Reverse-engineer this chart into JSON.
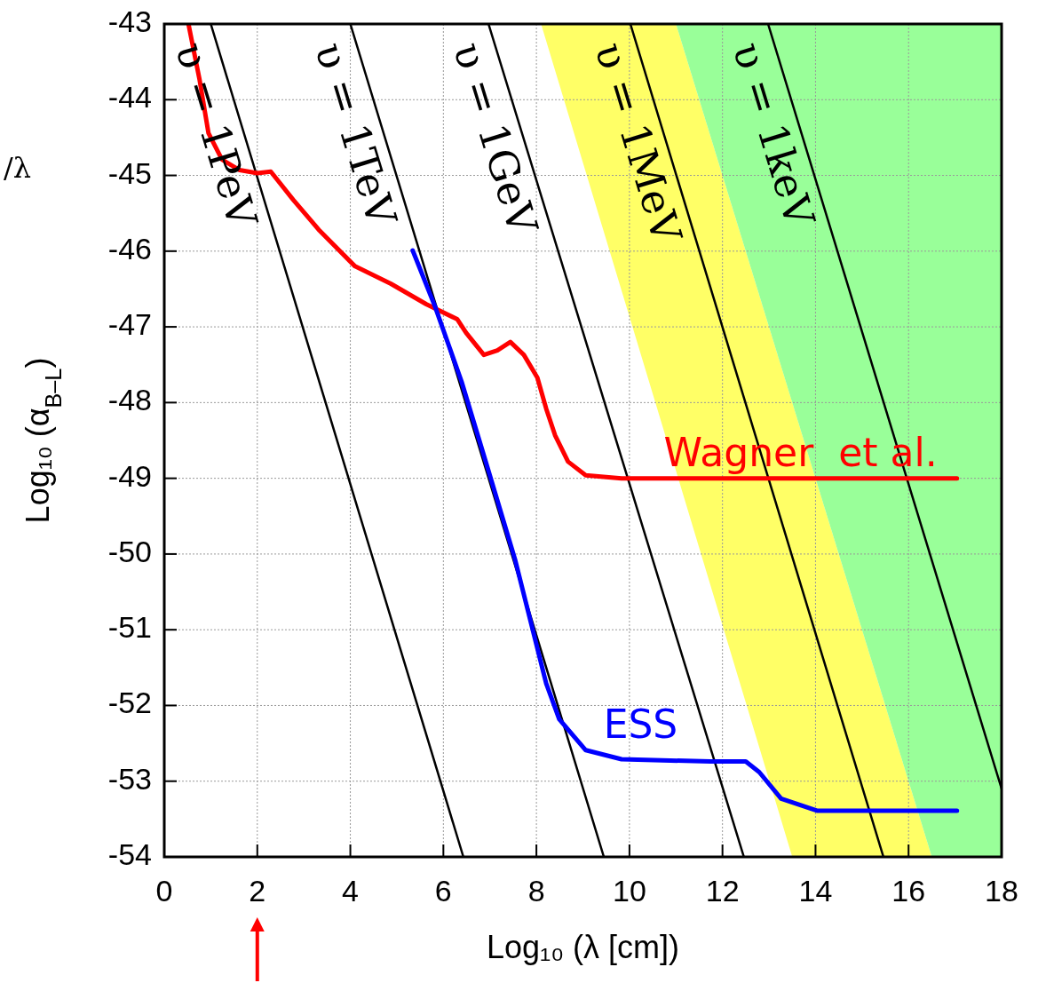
{
  "chart_data": {
    "type": "line",
    "xlabel": "Log₁₀ (λ [cm])",
    "ylabel": "Log₁₀ (α$_{B–L}$)",
    "annotations": [
      "/λ"
    ],
    "xlim": [
      0,
      18
    ],
    "xticks": [
      0,
      2,
      4,
      6,
      8,
      10,
      12,
      14,
      16,
      18
    ],
    "ylim": [
      -54,
      -43
    ],
    "yticks": [
      -43,
      -44,
      -45,
      -46,
      -47,
      -48,
      -49,
      -50,
      -51,
      -52,
      -53,
      -54
    ],
    "grid": true,
    "series": [
      {
        "color": "#ffff66",
        "x": [
          8.1,
          11,
          13.5,
          16.5
        ],
        "values": [
          null,
          null,
          null,
          null
        ],
        "lower": [
          -43,
          -48.9,
          -54,
          -54
        ],
        "upper": [
          -43,
          -43,
          -48,
          -54
        ]
      },
      {
        "color": "#99ff99",
        "x": [
          11,
          16.5,
          18
        ],
        "values": [
          null,
          null,
          null
        ],
        "lower": [
          -43,
          -54,
          -54
        ],
        "upper": [
          -43,
          -43,
          -43
        ]
      },
      {
        "name": "υ = 1PeV",
        "color": "#000000",
        "x": [
          1.0,
          6.43
        ],
        "values": [
          -43,
          -54
        ]
      },
      {
        "name": "υ = 1TeV",
        "color": "#000000",
        "x": [
          4.0,
          9.45
        ],
        "values": [
          -43,
          -54
        ]
      },
      {
        "name": "υ = 1GeV",
        "color": "#000000",
        "x": [
          6.97,
          12.46
        ],
        "values": [
          -43,
          -54
        ]
      },
      {
        "name": "υ = 1MeV",
        "color": "#000000",
        "x": [
          10.02,
          15.46
        ],
        "values": [
          -43,
          -54
        ]
      },
      {
        "name": "υ = 1keV",
        "color": "#000000",
        "x": [
          12.98,
          18
        ],
        "values": [
          -43,
          -53.1
        ]
      },
      {
        "name": "Wagner  et al.",
        "color": "#ff0000",
        "x": [
          0.52,
          0.76,
          0.95,
          1.24,
          1.62,
          2.0,
          2.29,
          2.77,
          3.34,
          4.1,
          4.87,
          5.63,
          6.3,
          6.49,
          6.87,
          7.16,
          7.44,
          7.73,
          8.02,
          8.21,
          8.4,
          8.68,
          9.06,
          9.83,
          17.04
        ],
        "values": [
          -43,
          -43.74,
          -44.44,
          -44.79,
          -44.93,
          -44.97,
          -44.95,
          -45.32,
          -45.73,
          -46.2,
          -46.43,
          -46.7,
          -46.9,
          -47.08,
          -47.37,
          -47.31,
          -47.2,
          -47.37,
          -47.67,
          -48.08,
          -48.43,
          -48.78,
          -48.96,
          -49.0,
          -49.0
        ]
      },
      {
        "name": "ESS",
        "color": "#0000ff",
        "x": [
          5.34,
          5.82,
          6.39,
          6.97,
          7.54,
          7.92,
          8.21,
          8.49,
          9.06,
          9.83,
          11.74,
          12.5,
          12.79,
          13.26,
          14.03,
          17.04
        ],
        "values": [
          -45.99,
          -46.73,
          -47.72,
          -48.9,
          -50.07,
          -51.0,
          -51.71,
          -52.18,
          -52.59,
          -52.71,
          -52.74,
          -52.74,
          -52.88,
          -53.23,
          -53.39,
          -53.39
        ]
      }
    ]
  }
}
